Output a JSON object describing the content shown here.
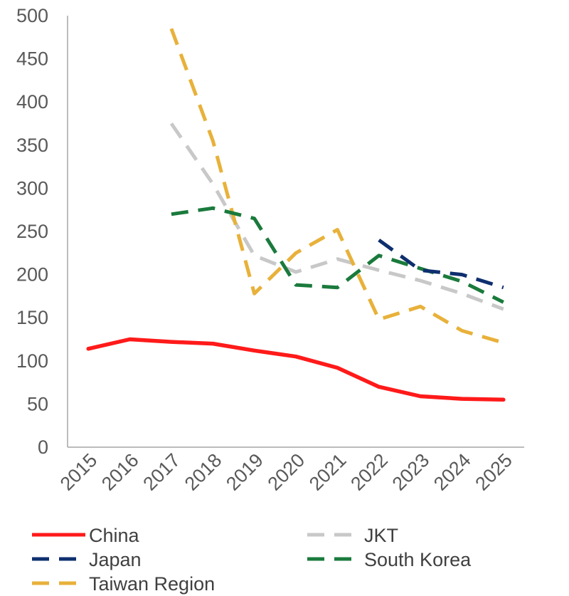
{
  "chart_data": {
    "type": "line",
    "title": "",
    "xlabel": "",
    "ylabel": "",
    "ylim": [
      0,
      500
    ],
    "yticks": [
      0,
      50,
      100,
      150,
      200,
      250,
      300,
      350,
      400,
      450,
      500
    ],
    "grid": false,
    "legend_position": "bottom",
    "categories": [
      "2015",
      "2016",
      "2017",
      "2018",
      "2019",
      "2020",
      "2021",
      "2022",
      "2023",
      "2024",
      "2025"
    ],
    "series": [
      {
        "name": "China",
        "color": "#ff1a1a",
        "dashed": false,
        "values": [
          114,
          125,
          122,
          120,
          112,
          105,
          92,
          70,
          59,
          56,
          55
        ]
      },
      {
        "name": "JKT",
        "color": "#c8c8c8",
        "dashed": true,
        "values": [
          null,
          null,
          375,
          305,
          222,
          203,
          218,
          205,
          193,
          178,
          160
        ]
      },
      {
        "name": "Japan",
        "color": "#0e2f6e",
        "dashed": true,
        "values": [
          null,
          null,
          null,
          null,
          null,
          null,
          null,
          240,
          205,
          200,
          185
        ]
      },
      {
        "name": "South Korea",
        "color": "#1a7a3c",
        "dashed": true,
        "values": [
          null,
          null,
          270,
          277,
          265,
          188,
          185,
          222,
          207,
          192,
          168
        ]
      },
      {
        "name": "Taiwan Region",
        "color": "#e8b13a",
        "dashed": true,
        "values": [
          null,
          null,
          485,
          355,
          178,
          225,
          252,
          148,
          163,
          135,
          121
        ]
      }
    ]
  }
}
